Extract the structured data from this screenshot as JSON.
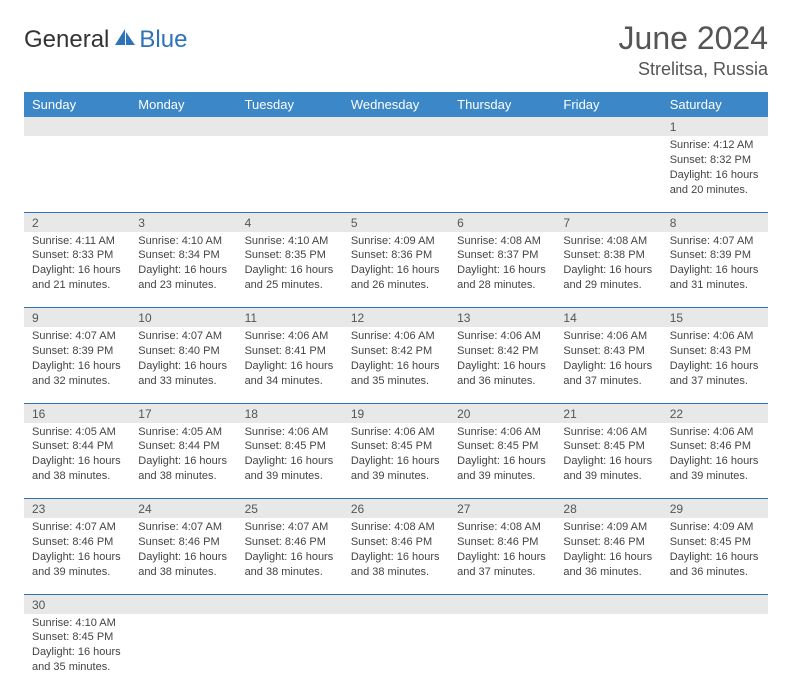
{
  "logo": {
    "part1": "General",
    "part2": "Blue"
  },
  "title": "June 2024",
  "location": "Strelitsa, Russia",
  "header_bg": "#3b87c8",
  "accent": "#2d73b8",
  "daynum_bg": "#e8e8e8",
  "days_of_week": [
    "Sunday",
    "Monday",
    "Tuesday",
    "Wednesday",
    "Thursday",
    "Friday",
    "Saturday"
  ],
  "weeks": [
    [
      null,
      null,
      null,
      null,
      null,
      null,
      {
        "n": "1",
        "sr": "Sunrise: 4:12 AM",
        "ss": "Sunset: 8:32 PM",
        "dl": "Daylight: 16 hours and 20 minutes."
      }
    ],
    [
      {
        "n": "2",
        "sr": "Sunrise: 4:11 AM",
        "ss": "Sunset: 8:33 PM",
        "dl": "Daylight: 16 hours and 21 minutes."
      },
      {
        "n": "3",
        "sr": "Sunrise: 4:10 AM",
        "ss": "Sunset: 8:34 PM",
        "dl": "Daylight: 16 hours and 23 minutes."
      },
      {
        "n": "4",
        "sr": "Sunrise: 4:10 AM",
        "ss": "Sunset: 8:35 PM",
        "dl": "Daylight: 16 hours and 25 minutes."
      },
      {
        "n": "5",
        "sr": "Sunrise: 4:09 AM",
        "ss": "Sunset: 8:36 PM",
        "dl": "Daylight: 16 hours and 26 minutes."
      },
      {
        "n": "6",
        "sr": "Sunrise: 4:08 AM",
        "ss": "Sunset: 8:37 PM",
        "dl": "Daylight: 16 hours and 28 minutes."
      },
      {
        "n": "7",
        "sr": "Sunrise: 4:08 AM",
        "ss": "Sunset: 8:38 PM",
        "dl": "Daylight: 16 hours and 29 minutes."
      },
      {
        "n": "8",
        "sr": "Sunrise: 4:07 AM",
        "ss": "Sunset: 8:39 PM",
        "dl": "Daylight: 16 hours and 31 minutes."
      }
    ],
    [
      {
        "n": "9",
        "sr": "Sunrise: 4:07 AM",
        "ss": "Sunset: 8:39 PM",
        "dl": "Daylight: 16 hours and 32 minutes."
      },
      {
        "n": "10",
        "sr": "Sunrise: 4:07 AM",
        "ss": "Sunset: 8:40 PM",
        "dl": "Daylight: 16 hours and 33 minutes."
      },
      {
        "n": "11",
        "sr": "Sunrise: 4:06 AM",
        "ss": "Sunset: 8:41 PM",
        "dl": "Daylight: 16 hours and 34 minutes."
      },
      {
        "n": "12",
        "sr": "Sunrise: 4:06 AM",
        "ss": "Sunset: 8:42 PM",
        "dl": "Daylight: 16 hours and 35 minutes."
      },
      {
        "n": "13",
        "sr": "Sunrise: 4:06 AM",
        "ss": "Sunset: 8:42 PM",
        "dl": "Daylight: 16 hours and 36 minutes."
      },
      {
        "n": "14",
        "sr": "Sunrise: 4:06 AM",
        "ss": "Sunset: 8:43 PM",
        "dl": "Daylight: 16 hours and 37 minutes."
      },
      {
        "n": "15",
        "sr": "Sunrise: 4:06 AM",
        "ss": "Sunset: 8:43 PM",
        "dl": "Daylight: 16 hours and 37 minutes."
      }
    ],
    [
      {
        "n": "16",
        "sr": "Sunrise: 4:05 AM",
        "ss": "Sunset: 8:44 PM",
        "dl": "Daylight: 16 hours and 38 minutes."
      },
      {
        "n": "17",
        "sr": "Sunrise: 4:05 AM",
        "ss": "Sunset: 8:44 PM",
        "dl": "Daylight: 16 hours and 38 minutes."
      },
      {
        "n": "18",
        "sr": "Sunrise: 4:06 AM",
        "ss": "Sunset: 8:45 PM",
        "dl": "Daylight: 16 hours and 39 minutes."
      },
      {
        "n": "19",
        "sr": "Sunrise: 4:06 AM",
        "ss": "Sunset: 8:45 PM",
        "dl": "Daylight: 16 hours and 39 minutes."
      },
      {
        "n": "20",
        "sr": "Sunrise: 4:06 AM",
        "ss": "Sunset: 8:45 PM",
        "dl": "Daylight: 16 hours and 39 minutes."
      },
      {
        "n": "21",
        "sr": "Sunrise: 4:06 AM",
        "ss": "Sunset: 8:45 PM",
        "dl": "Daylight: 16 hours and 39 minutes."
      },
      {
        "n": "22",
        "sr": "Sunrise: 4:06 AM",
        "ss": "Sunset: 8:46 PM",
        "dl": "Daylight: 16 hours and 39 minutes."
      }
    ],
    [
      {
        "n": "23",
        "sr": "Sunrise: 4:07 AM",
        "ss": "Sunset: 8:46 PM",
        "dl": "Daylight: 16 hours and 39 minutes."
      },
      {
        "n": "24",
        "sr": "Sunrise: 4:07 AM",
        "ss": "Sunset: 8:46 PM",
        "dl": "Daylight: 16 hours and 38 minutes."
      },
      {
        "n": "25",
        "sr": "Sunrise: 4:07 AM",
        "ss": "Sunset: 8:46 PM",
        "dl": "Daylight: 16 hours and 38 minutes."
      },
      {
        "n": "26",
        "sr": "Sunrise: 4:08 AM",
        "ss": "Sunset: 8:46 PM",
        "dl": "Daylight: 16 hours and 38 minutes."
      },
      {
        "n": "27",
        "sr": "Sunrise: 4:08 AM",
        "ss": "Sunset: 8:46 PM",
        "dl": "Daylight: 16 hours and 37 minutes."
      },
      {
        "n": "28",
        "sr": "Sunrise: 4:09 AM",
        "ss": "Sunset: 8:46 PM",
        "dl": "Daylight: 16 hours and 36 minutes."
      },
      {
        "n": "29",
        "sr": "Sunrise: 4:09 AM",
        "ss": "Sunset: 8:45 PM",
        "dl": "Daylight: 16 hours and 36 minutes."
      }
    ],
    [
      {
        "n": "30",
        "sr": "Sunrise: 4:10 AM",
        "ss": "Sunset: 8:45 PM",
        "dl": "Daylight: 16 hours and 35 minutes."
      },
      null,
      null,
      null,
      null,
      null,
      null
    ]
  ]
}
